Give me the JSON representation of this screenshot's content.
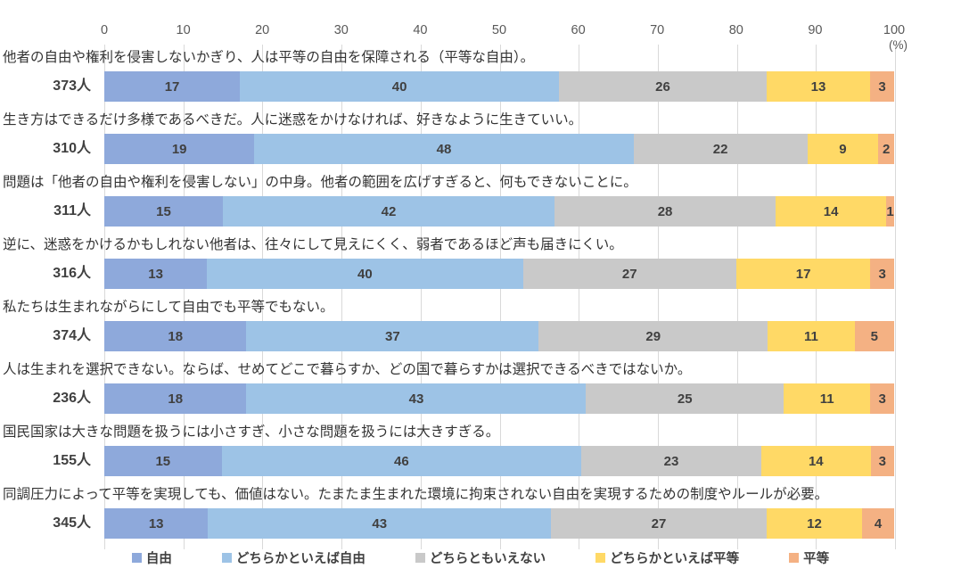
{
  "chart_data": {
    "type": "bar",
    "orientation": "horizontal-stacked",
    "title": "",
    "xlabel": "",
    "ylabel": "",
    "unit_label": "(%)",
    "axis_range": [
      0,
      100
    ],
    "x_ticks": [
      0,
      10,
      20,
      30,
      40,
      50,
      60,
      70,
      80,
      90,
      100
    ],
    "grid": true,
    "legend_position": "bottom",
    "series_names": [
      "自由",
      "どちらかといえば自由",
      "どちらともいえない",
      "どちらかといえば平等",
      "平等"
    ],
    "series_colors": [
      "#8EA9DB",
      "#9DC3E6",
      "#C9C9C9",
      "#FFD966",
      "#F4B183"
    ],
    "rows": [
      {
        "question": "他者の自由や権利を侵害しないかぎり、人は平等の自由を保障される（平等な自由）。",
        "respondents": "373人",
        "values": [
          17,
          40,
          26,
          13,
          3
        ]
      },
      {
        "question": "生き方はできるだけ多様であるべきだ。人に迷惑をかけなければ、好きなように生きていい。",
        "respondents": "310人",
        "values": [
          19,
          48,
          22,
          9,
          2
        ]
      },
      {
        "question": "問題は「他者の自由や権利を侵害しない」の中身。他者の範囲を広げすぎると、何もできないことに。",
        "respondents": "311人",
        "values": [
          15,
          42,
          28,
          14,
          1
        ]
      },
      {
        "question": "逆に、迷惑をかけるかもしれない他者は、往々にして見えにくく、弱者であるほど声も届きにくい。",
        "respondents": "316人",
        "values": [
          13,
          40,
          27,
          17,
          3
        ]
      },
      {
        "question": "私たちは生まれながらにして自由でも平等でもない。",
        "respondents": "374人",
        "values": [
          18,
          37,
          29,
          11,
          5
        ]
      },
      {
        "question": "人は生まれを選択できない。ならば、せめてどこで暮らすか、どの国で暮らすかは選択できるべきではないか。",
        "respondents": "236人",
        "values": [
          18,
          43,
          25,
          11,
          3
        ]
      },
      {
        "question": "国民国家は大きな問題を扱うには小さすぎ、小さな問題を扱うには大きすぎる。",
        "respondents": "155人",
        "values": [
          15,
          46,
          23,
          14,
          3
        ]
      },
      {
        "question": "同調圧力によって平等を実現しても、価値はない。たまたま生まれた環境に拘束されない自由を実現するための制度やルールが必要。",
        "respondents": "345人",
        "values": [
          13,
          43,
          27,
          12,
          4
        ]
      }
    ],
    "colors": {
      "gridline": "#D9D9D9",
      "axis_text": "#595959",
      "value_label": "#404040",
      "question_text": "#333333"
    }
  }
}
